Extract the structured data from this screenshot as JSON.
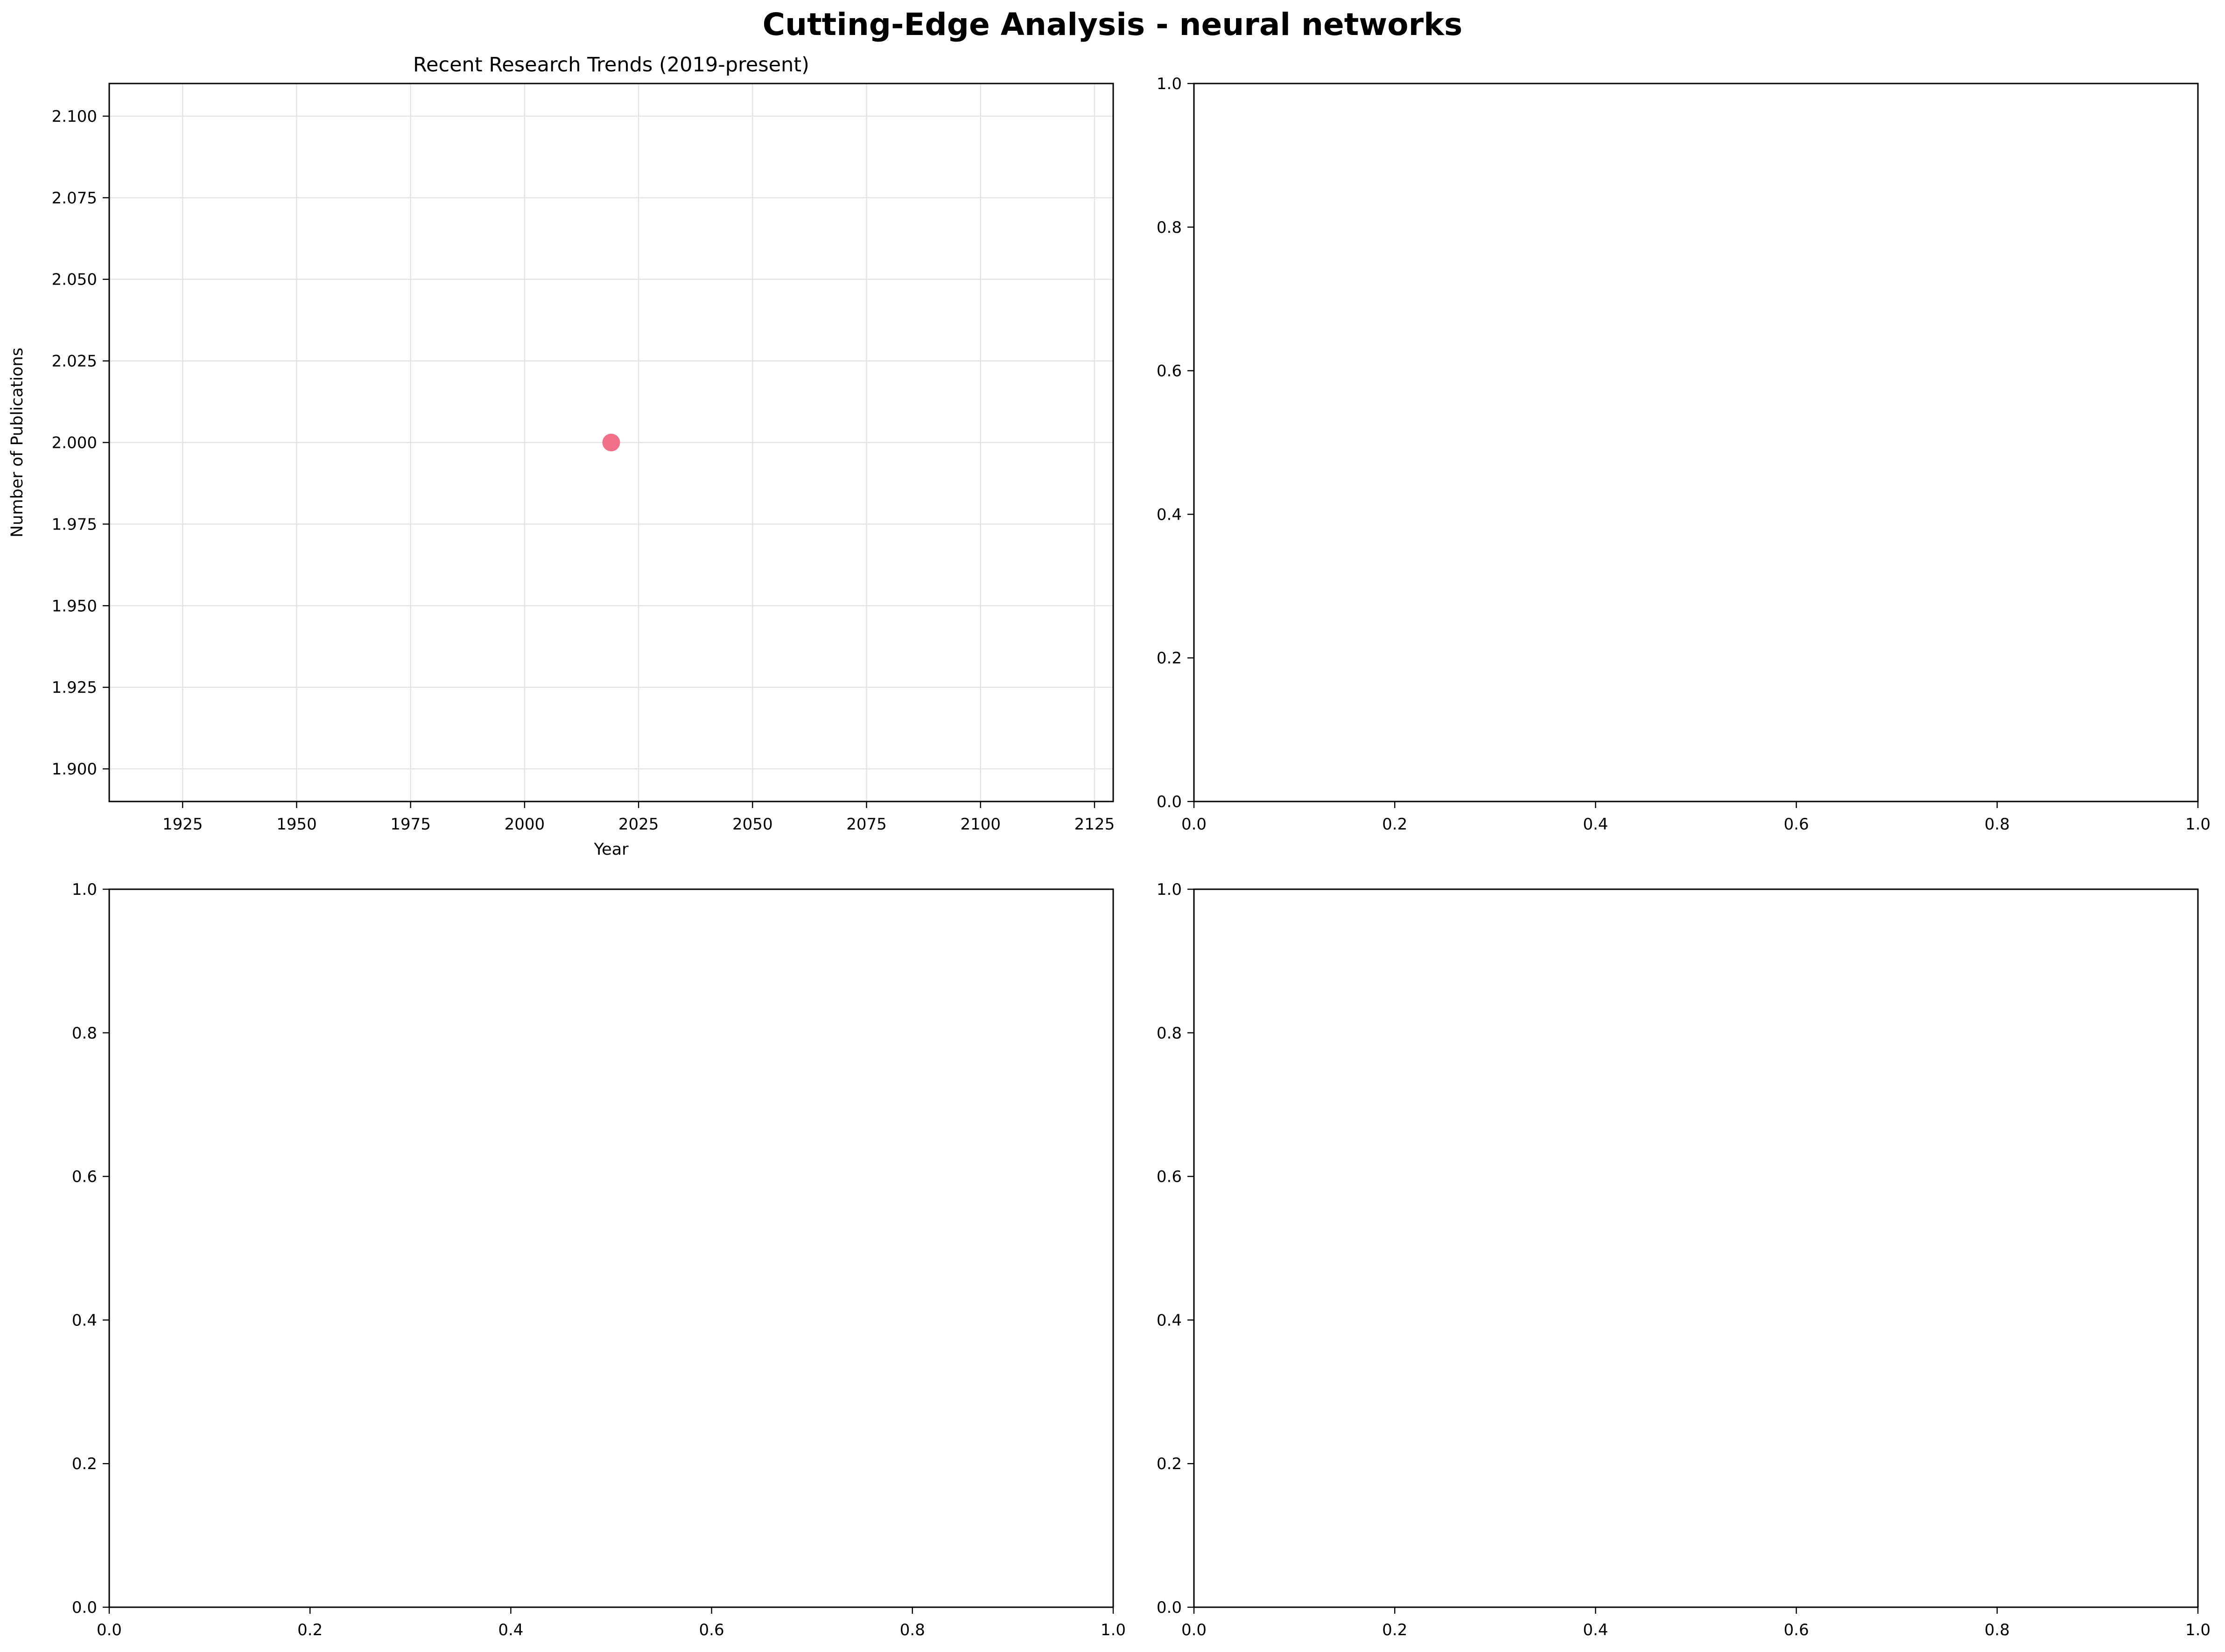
{
  "figure_title": "Cutting-Edge Analysis - neural networks",
  "chart_data": [
    {
      "type": "scatter",
      "title": "Recent Research Trends (2019-present)",
      "xlabel": "Year",
      "ylabel": "Number of Publications",
      "xlim": [
        1908.9,
        2129.1
      ],
      "ylim": [
        1.89,
        2.11
      ],
      "xticks": [
        1925,
        1950,
        1975,
        2000,
        2025,
        2050,
        2075,
        2100,
        2125
      ],
      "xtick_labels": [
        "1925",
        "1950",
        "1975",
        "2000",
        "2025",
        "2050",
        "2075",
        "2100",
        "2125"
      ],
      "yticks": [
        1.9,
        1.925,
        1.95,
        1.975,
        2.0,
        2.025,
        2.05,
        2.075,
        2.1
      ],
      "ytick_labels": [
        "1.900",
        "1.925",
        "1.950",
        "1.975",
        "2.000",
        "2.025",
        "2.050",
        "2.075",
        "2.100"
      ],
      "grid": true,
      "points": [
        {
          "x": 2019,
          "y": 2
        }
      ],
      "point_color": "#f0708a"
    },
    {
      "type": "scatter",
      "title": "",
      "xlabel": "",
      "ylabel": "",
      "xlim": [
        0,
        1
      ],
      "ylim": [
        0,
        1
      ],
      "xticks": [
        0,
        0.2,
        0.4,
        0.6,
        0.8,
        1.0
      ],
      "xtick_labels": [
        "0.0",
        "0.2",
        "0.4",
        "0.6",
        "0.8",
        "1.0"
      ],
      "yticks": [
        0,
        0.2,
        0.4,
        0.6,
        0.8,
        1.0
      ],
      "ytick_labels": [
        "0.0",
        "0.2",
        "0.4",
        "0.6",
        "0.8",
        "1.0"
      ],
      "grid": false,
      "points": []
    },
    {
      "type": "scatter",
      "title": "",
      "xlabel": "",
      "ylabel": "",
      "xlim": [
        0,
        1
      ],
      "ylim": [
        0,
        1
      ],
      "xticks": [
        0,
        0.2,
        0.4,
        0.6,
        0.8,
        1.0
      ],
      "xtick_labels": [
        "0.0",
        "0.2",
        "0.4",
        "0.6",
        "0.8",
        "1.0"
      ],
      "yticks": [
        0,
        0.2,
        0.4,
        0.6,
        0.8,
        1.0
      ],
      "ytick_labels": [
        "0.0",
        "0.2",
        "0.4",
        "0.6",
        "0.8",
        "1.0"
      ],
      "grid": false,
      "points": []
    },
    {
      "type": "scatter",
      "title": "",
      "xlabel": "",
      "ylabel": "",
      "xlim": [
        0,
        1
      ],
      "ylim": [
        0,
        1
      ],
      "xticks": [
        0,
        0.2,
        0.4,
        0.6,
        0.8,
        1.0
      ],
      "xtick_labels": [
        "0.0",
        "0.2",
        "0.4",
        "0.6",
        "0.8",
        "1.0"
      ],
      "yticks": [
        0,
        0.2,
        0.4,
        0.6,
        0.8,
        1.0
      ],
      "ytick_labels": [
        "0.0",
        "0.2",
        "0.4",
        "0.6",
        "0.8",
        "1.0"
      ],
      "grid": false,
      "points": []
    }
  ]
}
